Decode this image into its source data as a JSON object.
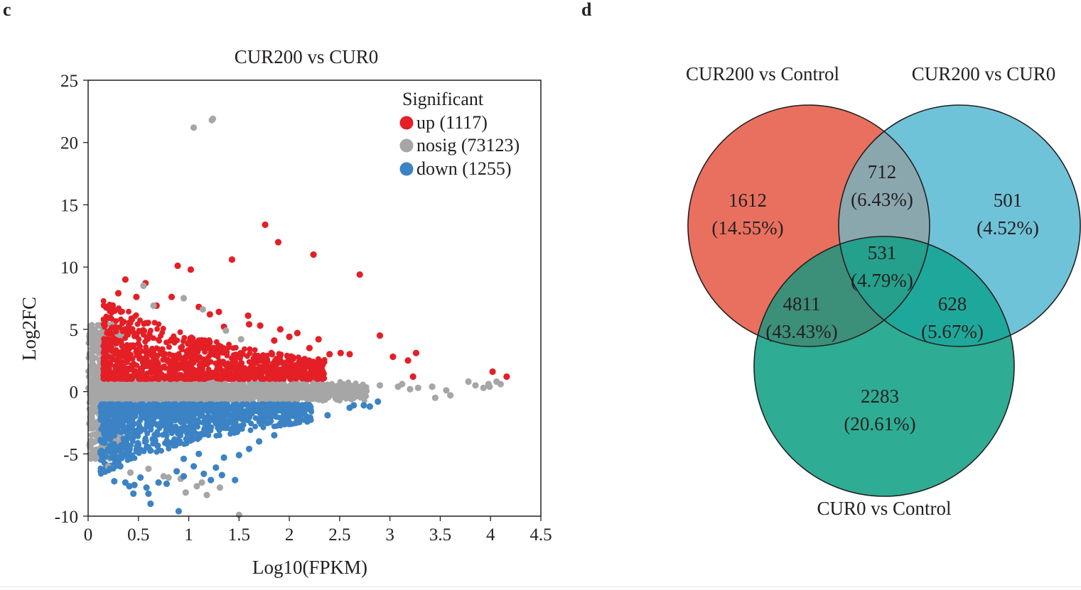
{
  "panels": {
    "left_letter": "c",
    "right_letter": "d"
  },
  "colors": {
    "up": "#e41f26",
    "nosig": "#a6a6a6",
    "down": "#3b83c4",
    "venn_a": "#e9705f",
    "venn_b": "#6fc3d9",
    "venn_c": "#2ead94"
  },
  "chart_data": [
    {
      "type": "scatter",
      "title": "CUR200 vs CUR0",
      "xlabel": "Log10(FPKM)",
      "ylabel": "Log2FC",
      "xlim": [
        0,
        4.5
      ],
      "ylim": [
        -10,
        25
      ],
      "x_ticks": [
        0,
        0.5,
        1,
        1.5,
        2,
        2.5,
        3,
        3.5,
        4,
        4.5
      ],
      "x_tick_labels": [
        "0",
        "0.5",
        "1",
        "1.5",
        "2",
        "2.5",
        "3",
        "3.5",
        "4",
        "4.5"
      ],
      "y_ticks": [
        -10,
        -5,
        0,
        5,
        10,
        15,
        20,
        25
      ],
      "y_tick_labels": [
        "-10",
        "-5",
        "0",
        "5",
        "10",
        "15",
        "20",
        "25"
      ],
      "legend": {
        "title": "Significant",
        "position": "top-right",
        "entries": [
          {
            "key": "up",
            "label": "up (1117)"
          },
          {
            "key": "nosig",
            "label": "nosig (73123)"
          },
          {
            "key": "down",
            "label": "down (1255)"
          }
        ]
      },
      "series": [
        {
          "name": "up",
          "count": 1117,
          "points": [
            [
              0.37,
              9.0
            ],
            [
              0.57,
              8.7
            ],
            [
              0.89,
              10.1
            ],
            [
              1.02,
              9.8
            ],
            [
              1.43,
              10.6
            ],
            [
              1.76,
              13.4
            ],
            [
              1.89,
              12.0
            ],
            [
              2.24,
              11.0
            ],
            [
              2.7,
              9.4
            ],
            [
              1.3,
              6.4
            ],
            [
              1.21,
              6.2
            ],
            [
              1.59,
              6.1
            ],
            [
              1.6,
              5.4
            ],
            [
              1.71,
              5.3
            ],
            [
              1.91,
              5.0
            ],
            [
              2.08,
              4.7
            ],
            [
              2.29,
              4.2
            ],
            [
              2.51,
              3.1
            ],
            [
              2.6,
              3.0
            ],
            [
              2.9,
              4.5
            ],
            [
              3.03,
              2.8
            ],
            [
              3.18,
              2.5
            ],
            [
              3.26,
              3.1
            ],
            [
              3.23,
              1.2
            ],
            [
              4.02,
              1.6
            ],
            [
              4.16,
              1.2
            ],
            [
              0.3,
              7.9
            ],
            [
              0.48,
              7.6
            ],
            [
              0.68,
              6.9
            ],
            [
              0.83,
              7.6
            ],
            [
              1.1,
              6.8
            ],
            [
              2.2,
              3.5
            ],
            [
              2.4,
              3.0
            ],
            [
              2.0,
              4.4
            ],
            [
              1.85,
              4.1
            ],
            [
              1.35,
              5.2
            ]
          ]
        },
        {
          "name": "nosig",
          "count": 73123,
          "points": [
            [
              1.05,
              21.2
            ],
            [
              1.24,
              21.9
            ],
            [
              1.23,
              21.8
            ],
            [
              0.55,
              8.5
            ],
            [
              0.95,
              7.5
            ],
            [
              0.65,
              6.9
            ],
            [
              1.14,
              6.6
            ],
            [
              1.37,
              4.9
            ],
            [
              1.52,
              4.2
            ],
            [
              3.08,
              0.4
            ],
            [
              3.28,
              0.3
            ],
            [
              3.56,
              0.1
            ],
            [
              3.6,
              -0.3
            ],
            [
              3.78,
              0.8
            ],
            [
              3.85,
              0.5
            ],
            [
              3.93,
              0.3
            ],
            [
              3.99,
              0.4
            ],
            [
              4.1,
              0.6
            ],
            [
              4.06,
              0.8
            ],
            [
              3.98,
              0.6
            ],
            [
              3.45,
              -0.5
            ],
            [
              3.42,
              0.4
            ],
            [
              3.2,
              0.2
            ],
            [
              3.12,
              0.6
            ],
            [
              2.9,
              0.5
            ],
            [
              0.05,
              4.8
            ],
            [
              0.08,
              -5.3
            ],
            [
              0.2,
              -6.0
            ],
            [
              0.42,
              -6.5
            ],
            [
              0.6,
              -6.2
            ],
            [
              0.75,
              -6.8
            ],
            [
              0.97,
              -8.1
            ],
            [
              1.08,
              -7.6
            ],
            [
              1.13,
              -7.3
            ],
            [
              1.5,
              -9.9
            ],
            [
              0.92,
              -7.0
            ],
            [
              1.31,
              -7.7
            ],
            [
              1.18,
              -8.3
            ],
            [
              0.8,
              -6.9
            ]
          ]
        },
        {
          "name": "down",
          "count": 1255,
          "points": [
            [
              0.22,
              -6.2
            ],
            [
              0.32,
              -6.0
            ],
            [
              0.26,
              -7.2
            ],
            [
              0.37,
              -7.3
            ],
            [
              0.41,
              -7.6
            ],
            [
              0.45,
              -8.2
            ],
            [
              0.6,
              -8.2
            ],
            [
              0.58,
              -7.7
            ],
            [
              0.7,
              -7.3
            ],
            [
              0.46,
              -7.5
            ],
            [
              0.9,
              -9.6
            ],
            [
              0.62,
              -9.0
            ],
            [
              0.78,
              -7.4
            ],
            [
              0.95,
              -6.8
            ],
            [
              1.15,
              -6.6
            ],
            [
              1.22,
              -7.1
            ],
            [
              1.05,
              -6.0
            ],
            [
              1.33,
              -6.7
            ],
            [
              1.46,
              -7.1
            ],
            [
              1.27,
              -6.1
            ],
            [
              0.88,
              -6.4
            ],
            [
              0.52,
              -6.9
            ],
            [
              0.3,
              -5.6
            ],
            [
              1.85,
              -3.5
            ],
            [
              2.07,
              -2.5
            ],
            [
              2.38,
              -1.9
            ],
            [
              2.6,
              -1.3
            ],
            [
              2.64,
              -1.1
            ],
            [
              2.8,
              -1.2
            ],
            [
              2.88,
              -0.8
            ],
            [
              2.74,
              -1.1
            ],
            [
              2.2,
              -2.2
            ],
            [
              2.0,
              -2.6
            ],
            [
              1.7,
              -4.0
            ],
            [
              1.6,
              -4.6
            ],
            [
              1.35,
              -5.3
            ],
            [
              1.5,
              -5.1
            ],
            [
              1.1,
              -5.0
            ],
            [
              0.95,
              -5.4
            ]
          ]
        }
      ]
    },
    {
      "type": "venn",
      "sets": [
        {
          "key": "a",
          "label": "CUR200 vs Control"
        },
        {
          "key": "b",
          "label": "CUR200 vs CUR0"
        },
        {
          "key": "c",
          "label": "CUR0 vs Control"
        }
      ],
      "regions": [
        {
          "id": "a_only",
          "count": "1612",
          "percent": "(14.55%)"
        },
        {
          "id": "ab",
          "count": "712",
          "percent": "(6.43%)"
        },
        {
          "id": "b_only",
          "count": "501",
          "percent": "(4.52%)"
        },
        {
          "id": "abc",
          "count": "531",
          "percent": "(4.79%)"
        },
        {
          "id": "ac",
          "count": "4811",
          "percent": "(43.43%)"
        },
        {
          "id": "bc",
          "count": "628",
          "percent": "(5.67%)"
        },
        {
          "id": "c_only",
          "count": "2283",
          "percent": "(20.61%)"
        }
      ]
    }
  ]
}
